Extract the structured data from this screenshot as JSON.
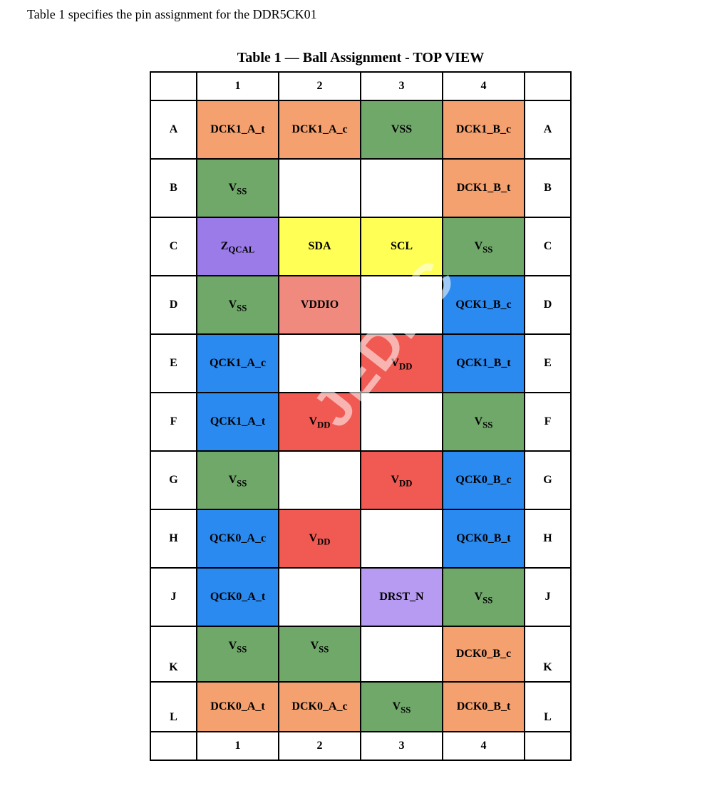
{
  "intro_text": "Table 1 specifies the pin assignment for the DDR5CK01",
  "table": {
    "caption": "Table 1 — Ball Assignment - TOP VIEW",
    "column_labels": [
      "1",
      "2",
      "3",
      "4"
    ],
    "colors": {
      "orange": "#f4a06f",
      "green": "#70a86a",
      "purple": "#9b7be8",
      "lavender": "#b79bf2",
      "yellow": "#ffff55",
      "salmon": "#f08a7e",
      "red": "#f05a53",
      "blue": "#2b8af0",
      "empty": "#ffffff"
    },
    "rows": [
      {
        "label": "A",
        "cells": [
          {
            "text": "DCK1_A_t",
            "color": "orange"
          },
          {
            "text": "DCK1_A_c",
            "color": "orange"
          },
          {
            "text": "VSS",
            "color": "green"
          },
          {
            "text": "DCK1_B_c",
            "color": "orange"
          }
        ]
      },
      {
        "label": "B",
        "cells": [
          {
            "base": "V",
            "sub": "SS",
            "color": "green"
          },
          {
            "text": "",
            "color": "empty"
          },
          {
            "text": "",
            "color": "empty"
          },
          {
            "text": "DCK1_B_t",
            "color": "orange"
          }
        ]
      },
      {
        "label": "C",
        "cells": [
          {
            "base": "Z",
            "sub": "QCAL",
            "color": "purple"
          },
          {
            "text": "SDA",
            "color": "yellow"
          },
          {
            "text": "SCL",
            "color": "yellow"
          },
          {
            "base": "V",
            "sub": "SS",
            "color": "green"
          }
        ]
      },
      {
        "label": "D",
        "cells": [
          {
            "base": "V",
            "sub": "SS",
            "color": "green"
          },
          {
            "text": "VDDIO",
            "color": "salmon"
          },
          {
            "text": "",
            "color": "empty"
          },
          {
            "text": "QCK1_B_c",
            "color": "blue"
          }
        ]
      },
      {
        "label": "E",
        "cells": [
          {
            "text": "QCK1_A_c",
            "color": "blue"
          },
          {
            "text": "",
            "color": "empty"
          },
          {
            "base": "V",
            "sub": "DD",
            "color": "red"
          },
          {
            "text": "QCK1_B_t",
            "color": "blue"
          }
        ]
      },
      {
        "label": "F",
        "cells": [
          {
            "text": "QCK1_A_t",
            "color": "blue"
          },
          {
            "base": "V",
            "sub": "DD",
            "color": "red"
          },
          {
            "text": "",
            "color": "empty"
          },
          {
            "base": "V",
            "sub": "SS",
            "color": "green"
          }
        ]
      },
      {
        "label": "G",
        "cells": [
          {
            "base": "V",
            "sub": "SS",
            "color": "green"
          },
          {
            "text": "",
            "color": "empty"
          },
          {
            "base": "V",
            "sub": "DD",
            "color": "red"
          },
          {
            "text": "QCK0_B_c",
            "color": "blue"
          }
        ]
      },
      {
        "label": "H",
        "cells": [
          {
            "text": "QCK0_A_c",
            "color": "blue"
          },
          {
            "base": "V",
            "sub": "DD",
            "color": "red"
          },
          {
            "text": "",
            "color": "empty"
          },
          {
            "text": "QCK0_B_t",
            "color": "blue"
          }
        ]
      },
      {
        "label": "J",
        "cells": [
          {
            "text": "QCK0_A_t",
            "color": "blue"
          },
          {
            "text": "",
            "color": "empty"
          },
          {
            "text": "DRST_N",
            "color": "lavender"
          },
          {
            "base": "V",
            "sub": "SS",
            "color": "green"
          }
        ]
      },
      {
        "label": "K",
        "short": true,
        "cells": [
          {
            "base": "V",
            "sub": "SS",
            "color": "green"
          },
          {
            "base": "V",
            "sub": "SS",
            "color": "green"
          },
          {
            "text": "",
            "color": "empty"
          },
          {
            "text": "DCK0_B_c",
            "color": "orange"
          }
        ]
      },
      {
        "label": "L",
        "short": true,
        "cells": [
          {
            "text": "DCK0_A_t",
            "color": "orange"
          },
          {
            "text": "DCK0_A_c",
            "color": "orange"
          },
          {
            "base": "V",
            "sub": "SS",
            "color": "green"
          },
          {
            "text": "DCK0_B_t",
            "color": "orange"
          }
        ]
      }
    ]
  },
  "watermark": "JEDEC"
}
